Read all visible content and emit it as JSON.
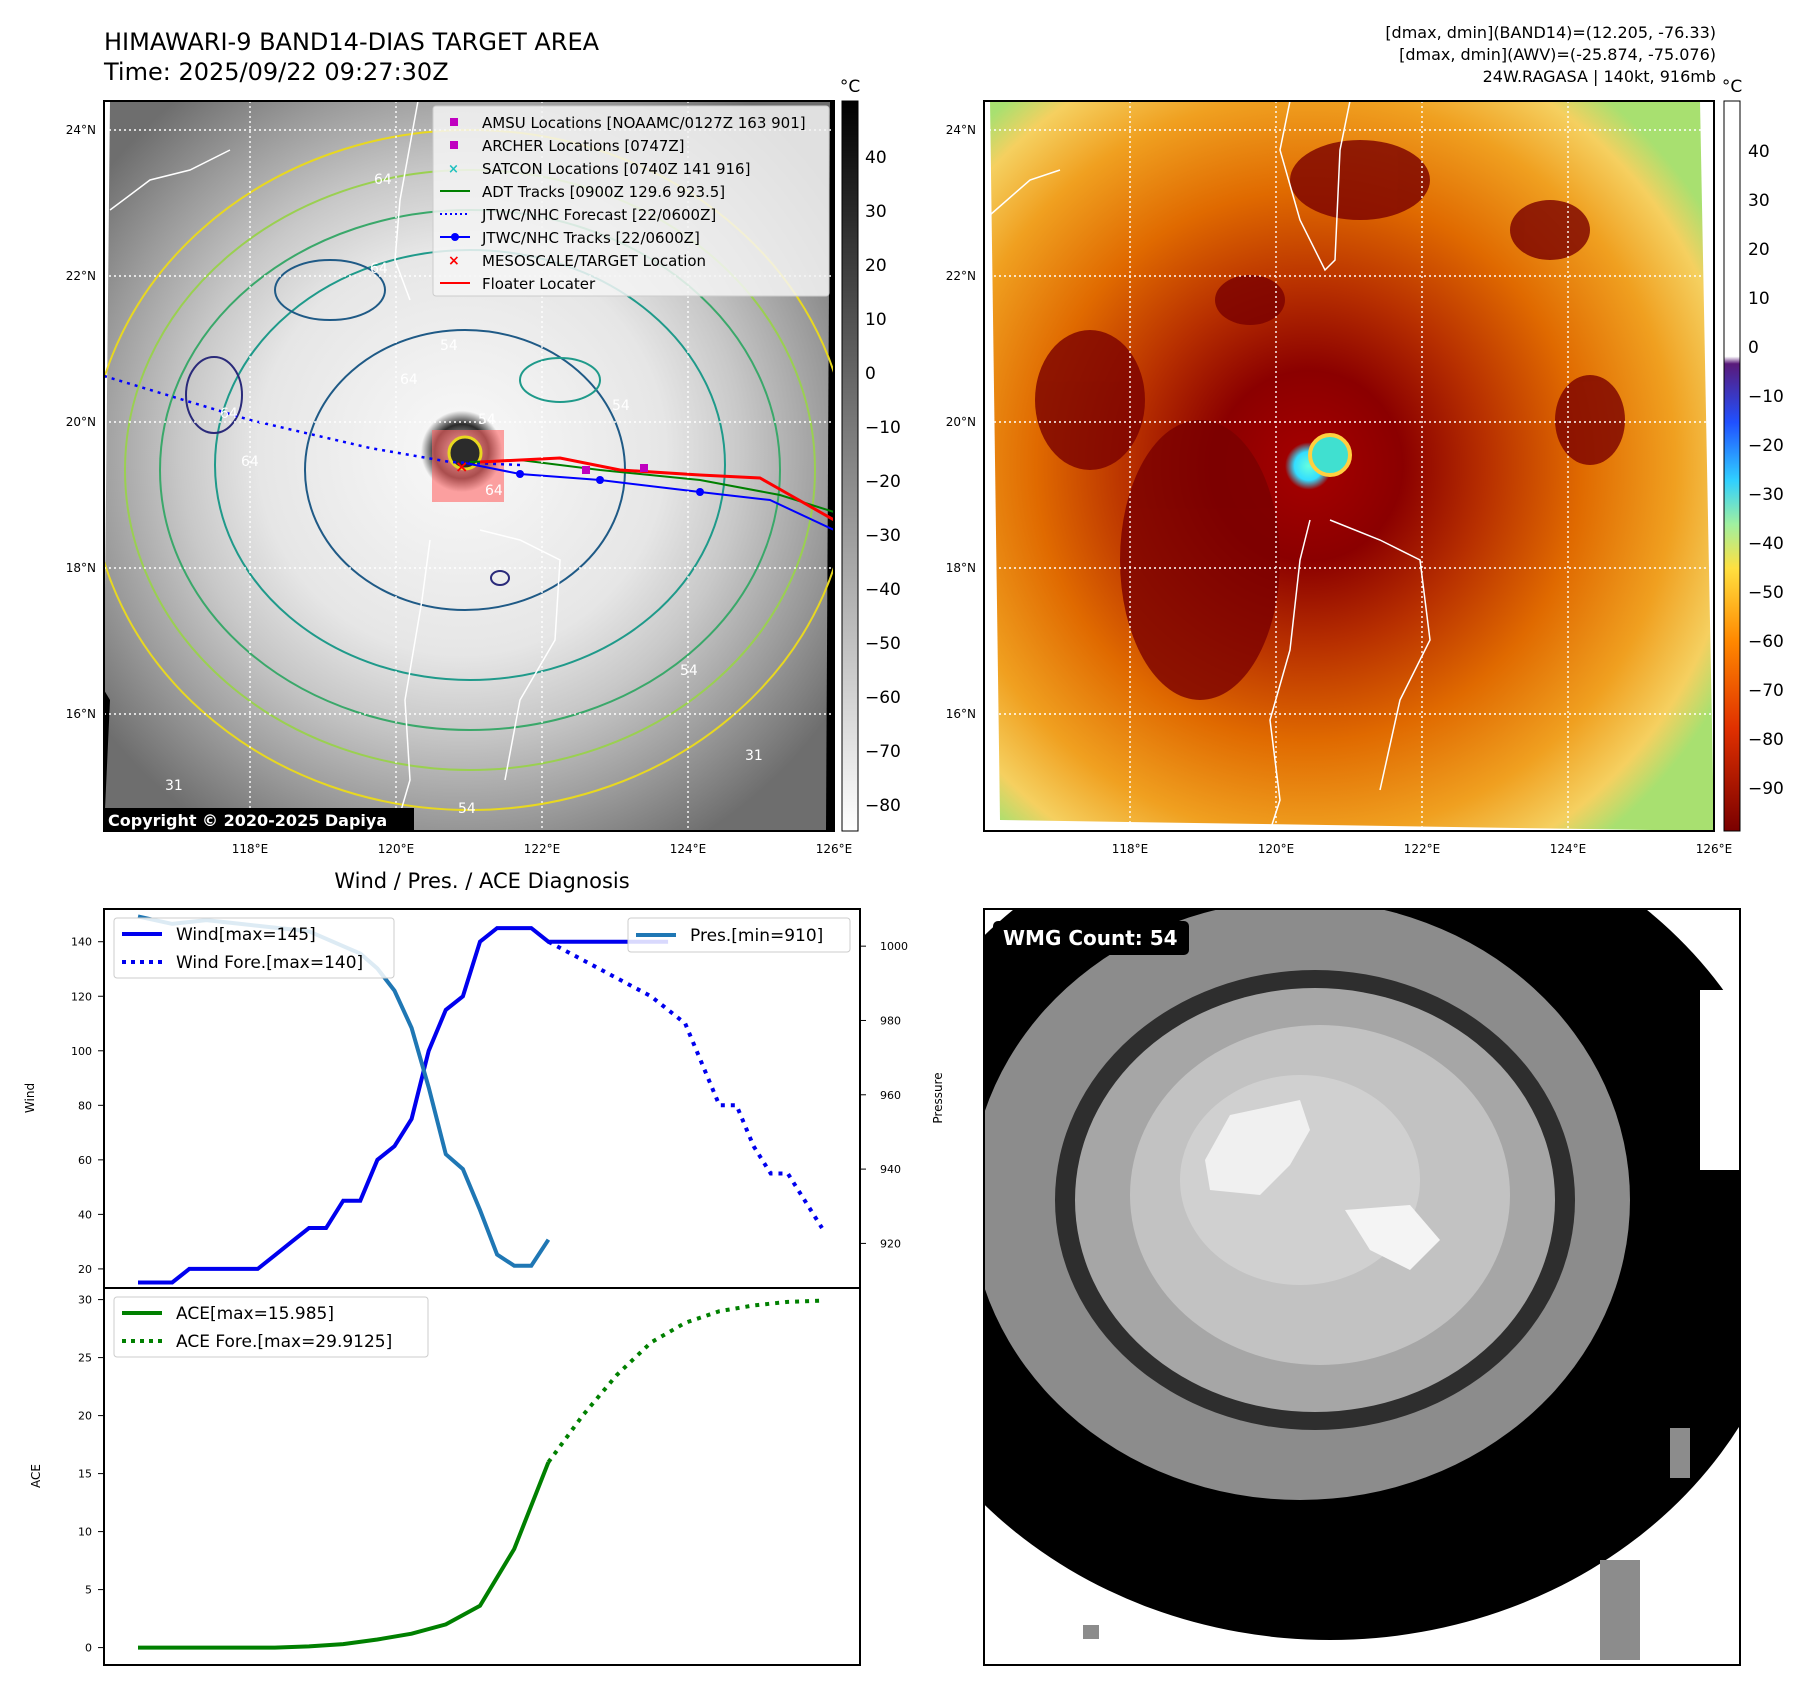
{
  "header": {
    "title": "HIMAWARI-9 BAND14-DIAS TARGET AREA",
    "time": "Time: 2025/09/22 09:27:30Z",
    "stats_band14": "[dmax, dmin](BAND14)=(12.205, -76.33)",
    "stats_awv": "[dmax, dmin](AWV)=(-25.874, -75.076)",
    "storm": "24W.RAGASA | 140kt, 916mb"
  },
  "map_left": {
    "lat_labels": [
      "24°N",
      "22°N",
      "20°N",
      "18°N",
      "16°N"
    ],
    "lon_labels": [
      "118°E",
      "120°E",
      "122°E",
      "124°E",
      "126°E"
    ],
    "colorbar_unit": "°C",
    "colorbar_ticks": [
      "40",
      "30",
      "20",
      "10",
      "0",
      "−10",
      "−20",
      "−30",
      "−40",
      "−50",
      "−60",
      "−70",
      "−80"
    ],
    "contour_labels": [
      "64",
      "64",
      "64",
      "54",
      "54",
      "54",
      "64",
      "64",
      "64",
      "31",
      "31",
      "54",
      "54"
    ],
    "copyright": "Copyright © 2020-2025 Dapiya",
    "legend": [
      {
        "label": "AMSU Locations [NOAAMC/0127Z 163 901]",
        "symbol": "square",
        "color": "#c000c0"
      },
      {
        "label": "ARCHER Locations [0747Z]",
        "symbol": "square",
        "color": "#c000c0"
      },
      {
        "label": "SATCON Locations [0740Z 141 916]",
        "symbol": "x",
        "color": "#20c0c0"
      },
      {
        "label": "ADT Tracks [0900Z 129.6 923.5]",
        "symbol": "line",
        "color": "#008000"
      },
      {
        "label": "JTWC/NHC Forecast [22/0600Z]",
        "symbol": "dotted",
        "color": "#0000ff"
      },
      {
        "label": "JTWC/NHC Tracks [22/0600Z]",
        "symbol": "line-dot",
        "color": "#0000ff"
      },
      {
        "label": "MESOSCALE/TARGET Location",
        "symbol": "x",
        "color": "#ff0000"
      },
      {
        "label": "Floater Locater",
        "symbol": "line",
        "color": "#ff0000"
      }
    ]
  },
  "map_right": {
    "lat_labels": [
      "24°N",
      "22°N",
      "20°N",
      "18°N",
      "16°N"
    ],
    "lon_labels": [
      "118°E",
      "120°E",
      "122°E",
      "124°E",
      "126°E"
    ],
    "colorbar_unit": "°C",
    "colorbar_ticks": [
      "40",
      "30",
      "20",
      "10",
      "0",
      "−10",
      "−20",
      "−30",
      "−40",
      "−50",
      "−60",
      "−70",
      "−80",
      "−90"
    ]
  },
  "wmg_panel": {
    "label": "WMG Count: 54"
  },
  "chart_data": [
    {
      "type": "line",
      "title": "Wind / Pres. / ACE Diagnosis",
      "ylabel": "Wind",
      "y2label": "Pressure",
      "ylim": [
        13,
        152
      ],
      "y2lim": [
        908,
        1010
      ],
      "yticks": [
        "20",
        "40",
        "60",
        "80",
        "100",
        "120",
        "140"
      ],
      "y2ticks": [
        "920",
        "940",
        "960",
        "980",
        "1000"
      ],
      "legend_left": [
        "Wind[max=145]",
        "Wind Fore.[max=140]"
      ],
      "legend_right": [
        "Pres.[min=910]"
      ],
      "series": [
        {
          "name": "Wind[max=145]",
          "color": "#0000ee",
          "style": "solid",
          "x": [
            0,
            1,
            2,
            3,
            4,
            5,
            6,
            7,
            8,
            9,
            10,
            11,
            12,
            13,
            14,
            15,
            16,
            17,
            18,
            19,
            20,
            21,
            22,
            23,
            24,
            25,
            26,
            27,
            28,
            29,
            30,
            31
          ],
          "values": [
            15,
            15,
            15,
            20,
            20,
            20,
            20,
            20,
            25,
            30,
            35,
            35,
            45,
            45,
            60,
            65,
            75,
            100,
            115,
            120,
            140,
            145,
            145,
            145,
            140,
            140,
            140,
            140,
            140,
            140,
            140,
            140
          ]
        },
        {
          "name": "Wind Fore.[max=140]",
          "color": "#0000ee",
          "style": "dotted",
          "x": [
            24,
            27,
            30,
            32,
            33,
            34,
            35,
            36,
            37,
            38,
            40
          ],
          "values": [
            140,
            130,
            120,
            110,
            95,
            80,
            80,
            65,
            55,
            55,
            35
          ]
        },
        {
          "name": "Pres.[min=910]",
          "color": "#1f77b4",
          "style": "solid",
          "axis": "right",
          "x": [
            0,
            2,
            4,
            6,
            8,
            10,
            12,
            13,
            14,
            15,
            16,
            17,
            18,
            19,
            20,
            21,
            22,
            23,
            24
          ],
          "values": [
            1008,
            1006,
            1007,
            1006,
            1005,
            1004,
            1000,
            998,
            994,
            988,
            978,
            962,
            944,
            940,
            929,
            917,
            914,
            914,
            921
          ]
        }
      ]
    },
    {
      "type": "line",
      "ylabel": "ACE",
      "ylim": [
        -1.5,
        31
      ],
      "yticks": [
        "0",
        "5",
        "10",
        "15",
        "20",
        "25",
        "30"
      ],
      "legend": [
        "ACE[max=15.985]",
        "ACE Fore.[max=29.9125]"
      ],
      "series": [
        {
          "name": "ACE[max=15.985]",
          "color": "#008000",
          "style": "solid",
          "x": [
            0,
            2,
            4,
            6,
            8,
            10,
            12,
            14,
            16,
            18,
            20,
            22,
            24
          ],
          "values": [
            0,
            0,
            0,
            0,
            0,
            0.1,
            0.3,
            0.7,
            1.2,
            2.0,
            3.6,
            8.5,
            15.985
          ]
        },
        {
          "name": "ACE Fore.[max=29.9125]",
          "color": "#008000",
          "style": "dotted",
          "x": [
            24,
            26,
            28,
            30,
            32,
            34,
            36,
            38,
            40
          ],
          "values": [
            15.985,
            20.0,
            23.5,
            26.3,
            28.0,
            29.0,
            29.5,
            29.8,
            29.9125
          ]
        }
      ]
    }
  ]
}
